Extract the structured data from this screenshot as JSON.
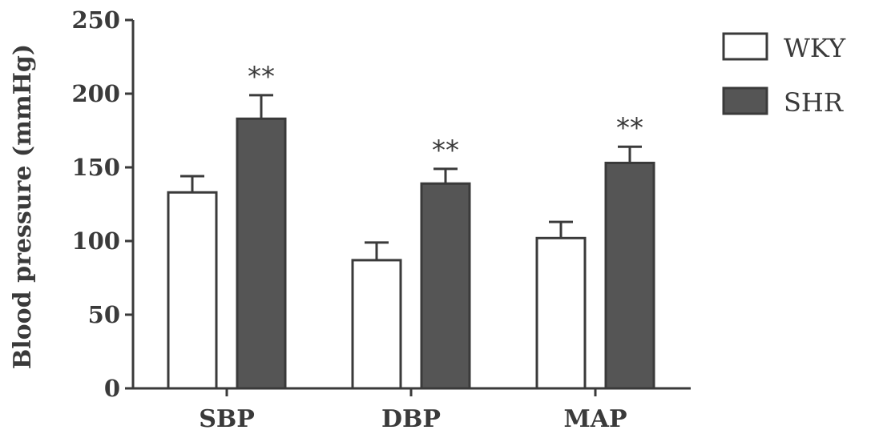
{
  "chart_data": {
    "type": "bar",
    "ylabel": "Blood pressure (mmHg)",
    "xlabel": "",
    "ylim": [
      0,
      250
    ],
    "yticks": [
      0,
      50,
      100,
      150,
      200,
      250
    ],
    "categories": [
      "SBP",
      "DBP",
      "MAP"
    ],
    "series": [
      {
        "name": "WKY",
        "fill": "#ffffff",
        "values": [
          133,
          87,
          102
        ],
        "errors": [
          11,
          12,
          11
        ],
        "significance": [
          "",
          "",
          ""
        ]
      },
      {
        "name": "SHR",
        "fill": "#555555",
        "values": [
          183,
          139,
          153
        ],
        "errors": [
          16,
          10,
          11
        ],
        "significance": [
          "**",
          "**",
          "**"
        ]
      }
    ],
    "legend_position": "top-right",
    "grid": false,
    "colors": {
      "axis": "#3a3a3a",
      "bar_stroke": "#3a3a3a"
    }
  }
}
